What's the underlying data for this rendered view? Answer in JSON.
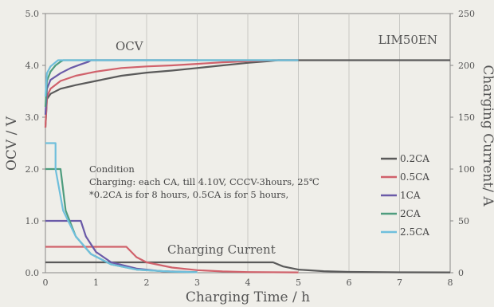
{
  "chart_data": {
    "type": "line",
    "title": "LIM50EN",
    "xlabel": "Charging Time / h",
    "ylabel_left": "OCV / V",
    "ylabel_right": "Charging Current/ A",
    "xlim": [
      0,
      8
    ],
    "ylim_left": [
      0,
      5
    ],
    "ylim_right": [
      0,
      250
    ],
    "x_ticks": [
      "0",
      "1",
      "2",
      "3",
      "4",
      "5",
      "6",
      "7",
      "8"
    ],
    "y_ticks_left": [
      "0.0",
      "1.0",
      "2.0",
      "3.0",
      "4.0",
      "5.0"
    ],
    "y_ticks_right": [
      "0",
      "50",
      "100",
      "150",
      "200",
      "250"
    ],
    "grid": "vertical",
    "legend_position": "right-middle",
    "annotations": {
      "ocv_label": "OCV",
      "current_label": "Charging Current",
      "condition_title": "Condition",
      "condition_line1": "Charging: each CA, till 4.10V,  CCCV-3hours,  25℃",
      "condition_line2": "*0.2CA is for 8 hours, 0.5CA is for 5 hours,"
    },
    "series": [
      {
        "name": "0.2CA",
        "color": "#5a5a5a",
        "ocv": [
          [
            0,
            2.8
          ],
          [
            0.03,
            3.35
          ],
          [
            0.1,
            3.45
          ],
          [
            0.3,
            3.55
          ],
          [
            0.6,
            3.62
          ],
          [
            1,
            3.7
          ],
          [
            1.5,
            3.8
          ],
          [
            2,
            3.86
          ],
          [
            2.5,
            3.9
          ],
          [
            3,
            3.95
          ],
          [
            3.5,
            4.0
          ],
          [
            4,
            4.05
          ],
          [
            4.4,
            4.08
          ],
          [
            4.6,
            4.1
          ],
          [
            8,
            4.1
          ]
        ],
        "current": [
          [
            0,
            10
          ],
          [
            4.5,
            10
          ],
          [
            4.7,
            6
          ],
          [
            5,
            3
          ],
          [
            5.5,
            1.5
          ],
          [
            6,
            0.8
          ],
          [
            7,
            0.4
          ],
          [
            8,
            0.3
          ]
        ]
      },
      {
        "name": "0.5CA",
        "color": "#d0616b",
        "ocv": [
          [
            0,
            2.8
          ],
          [
            0.03,
            3.4
          ],
          [
            0.1,
            3.55
          ],
          [
            0.3,
            3.7
          ],
          [
            0.6,
            3.8
          ],
          [
            1,
            3.88
          ],
          [
            1.5,
            3.95
          ],
          [
            2,
            3.98
          ],
          [
            2.5,
            4.0
          ],
          [
            3,
            4.03
          ],
          [
            3.5,
            4.06
          ],
          [
            4,
            4.08
          ],
          [
            4.5,
            4.1
          ],
          [
            5,
            4.1
          ]
        ],
        "current": [
          [
            0,
            25
          ],
          [
            1.6,
            25
          ],
          [
            1.8,
            15
          ],
          [
            2,
            10
          ],
          [
            2.5,
            5
          ],
          [
            3,
            2.5
          ],
          [
            3.5,
            1.2
          ],
          [
            4,
            0.6
          ],
          [
            5,
            0.3
          ]
        ]
      },
      {
        "name": "1CA",
        "color": "#6a5aa8",
        "ocv": [
          [
            0,
            3.05
          ],
          [
            0.03,
            3.55
          ],
          [
            0.1,
            3.72
          ],
          [
            0.3,
            3.85
          ],
          [
            0.5,
            3.95
          ],
          [
            0.7,
            4.02
          ],
          [
            0.85,
            4.07
          ],
          [
            0.9,
            4.1
          ],
          [
            3,
            4.1
          ]
        ],
        "current": [
          [
            0,
            50
          ],
          [
            0.7,
            50
          ],
          [
            0.8,
            35
          ],
          [
            1,
            20
          ],
          [
            1.3,
            10
          ],
          [
            1.8,
            4
          ],
          [
            2.3,
            1.5
          ],
          [
            3,
            0.5
          ]
        ]
      },
      {
        "name": "2CA",
        "color": "#4e9c7e",
        "ocv": [
          [
            0,
            3.2
          ],
          [
            0.03,
            3.7
          ],
          [
            0.1,
            3.88
          ],
          [
            0.2,
            4.0
          ],
          [
            0.3,
            4.07
          ],
          [
            0.35,
            4.1
          ],
          [
            5,
            4.1
          ]
        ],
        "current": [
          [
            0,
            100
          ],
          [
            0.3,
            100
          ],
          [
            0.4,
            60
          ],
          [
            0.6,
            35
          ],
          [
            0.9,
            18
          ],
          [
            1.3,
            8
          ],
          [
            1.8,
            3
          ],
          [
            2.5,
            1
          ],
          [
            3,
            0.5
          ]
        ]
      },
      {
        "name": "2.5CA",
        "color": "#6fbfdc",
        "ocv": [
          [
            0,
            3.4
          ],
          [
            0.03,
            3.85
          ],
          [
            0.1,
            3.98
          ],
          [
            0.2,
            4.06
          ],
          [
            0.25,
            4.1
          ],
          [
            5,
            4.1
          ]
        ],
        "current": [
          [
            0,
            125
          ],
          [
            0.2,
            125
          ],
          [
            0.2,
            100
          ],
          [
            0.35,
            60
          ],
          [
            0.6,
            35
          ],
          [
            0.9,
            18
          ],
          [
            1.3,
            8
          ],
          [
            1.8,
            3
          ],
          [
            2.5,
            1
          ],
          [
            3,
            0.5
          ]
        ]
      }
    ]
  }
}
